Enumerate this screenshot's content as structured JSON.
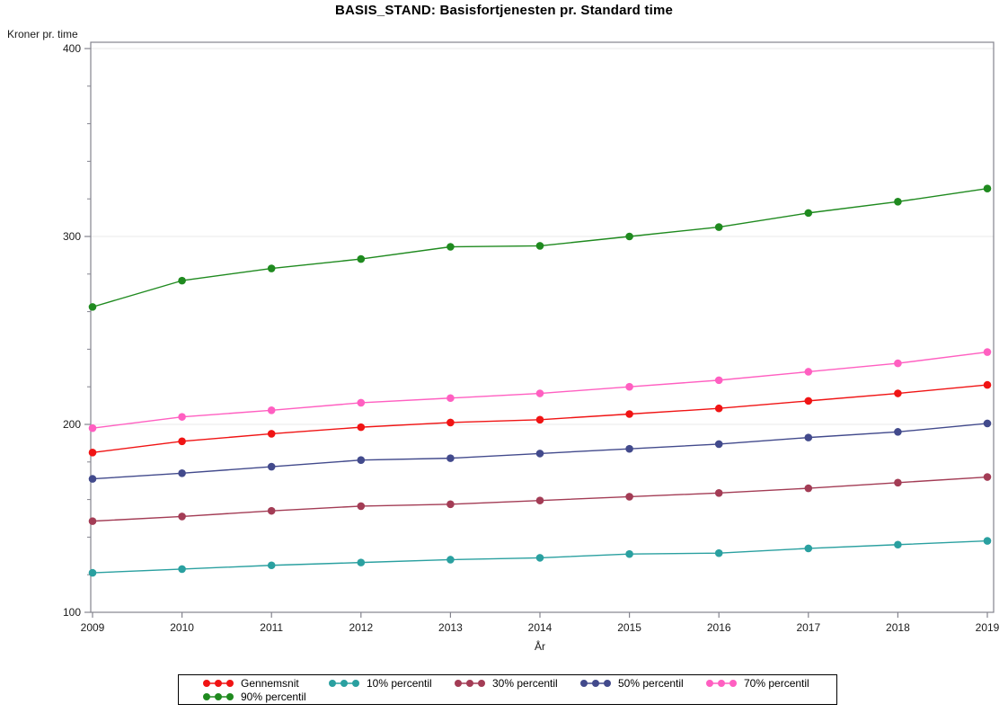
{
  "title": "BASIS_STAND: Basisfortjenesten pr. Standard time",
  "axes": {
    "y_label": "Kroner pr. time",
    "x_label": "År",
    "y_tick_labels": [
      "100",
      "200",
      "300",
      "400"
    ],
    "x_tick_labels": [
      "2009",
      "2010",
      "2011",
      "2012",
      "2013",
      "2014",
      "2015",
      "2016",
      "2017",
      "2018",
      "2019"
    ]
  },
  "chart_data": {
    "type": "line",
    "title": "BASIS_STAND: Basisfortjenesten pr. Standard time",
    "xlabel": "År",
    "ylabel": "Kroner pr. time",
    "x": [
      2009,
      2010,
      2011,
      2012,
      2013,
      2014,
      2015,
      2016,
      2017,
      2018,
      2019
    ],
    "ylim": [
      100,
      400
    ],
    "yticks_major": [
      100,
      200,
      300,
      400
    ],
    "ytick_minor_step": 20,
    "grid": "horizontal gridlines at major y ticks",
    "legend_position": "bottom",
    "marker": "filled-circle",
    "series": [
      {
        "name": "Gennemsnit",
        "color": "#f01414",
        "values": [
          185,
          191,
          195,
          198.5,
          201,
          202.5,
          205.5,
          208.5,
          212.5,
          216.5,
          221
        ]
      },
      {
        "name": "10% percentil",
        "color": "#2aa0a0",
        "values": [
          121,
          123,
          125,
          126.5,
          128,
          129,
          131,
          131.5,
          134,
          136,
          138
        ]
      },
      {
        "name": "30% percentil",
        "color": "#a33c55",
        "values": [
          148.5,
          151,
          154,
          156.5,
          157.5,
          159.5,
          161.5,
          163.5,
          166,
          169,
          172
        ]
      },
      {
        "name": "50% percentil",
        "color": "#424a8c",
        "values": [
          171,
          174,
          177.5,
          181,
          182,
          184.5,
          187,
          189.5,
          193,
          196,
          200.5
        ]
      },
      {
        "name": "70% percentil",
        "color": "#ff5fc1",
        "values": [
          198,
          204,
          207.5,
          211.5,
          214,
          216.5,
          220,
          223.5,
          228,
          232.5,
          238.5
        ]
      },
      {
        "name": "90% percentil",
        "color": "#1f8a1f",
        "values": [
          262.5,
          276.5,
          283,
          288,
          294.5,
          295,
          300,
          305,
          312.5,
          318.5,
          325.5
        ]
      }
    ],
    "colors": {
      "frame": "#84848e",
      "gridline": "#e8e8e8",
      "tick": "#84848e",
      "tick_label": "#1a1a1a"
    }
  }
}
